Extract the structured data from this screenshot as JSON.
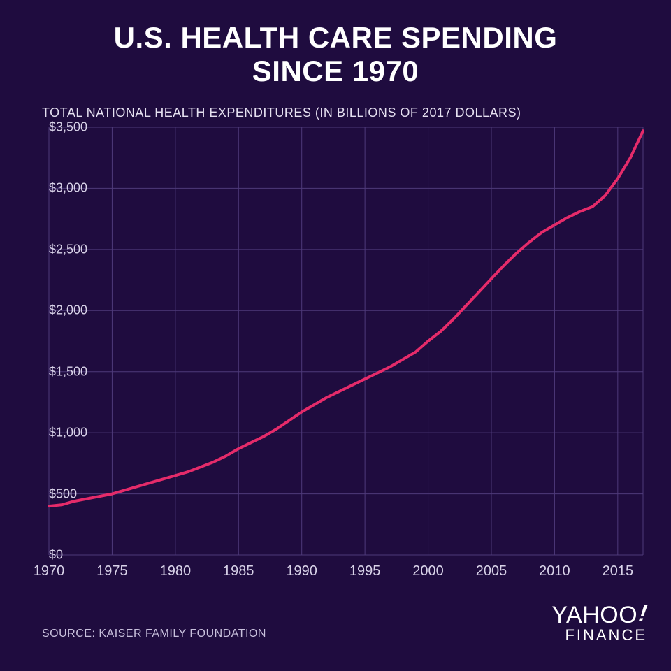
{
  "title_line1": "U.S. HEALTH CARE SPENDING",
  "title_line2": "SINCE 1970",
  "title_fontsize": 42,
  "subtitle": "TOTAL NATIONAL HEALTH EXPENDITURES (IN BILLIONS OF 2017 DOLLARS)",
  "subtitle_fontsize": 18,
  "source_label": "SOURCE:  KAISER FAMILY FOUNDATION",
  "logo": {
    "brand": "YAHOO",
    "bang": "!",
    "sub": "FINANCE"
  },
  "chart": {
    "type": "line",
    "background_color": "#1f0c3f",
    "grid_color": "#4e3a7a",
    "axis_color": "#d8d2e8",
    "line_color": "#e52b6a",
    "line_width": 4,
    "tick_fontsize": 18,
    "xlim": [
      1970,
      2017
    ],
    "ylim": [
      0,
      3500
    ],
    "xtick_step": 5,
    "xticks": [
      1970,
      1975,
      1980,
      1985,
      1990,
      1995,
      2000,
      2005,
      2010,
      2015
    ],
    "yticks": [
      0,
      500,
      1000,
      1500,
      2000,
      2500,
      3000,
      3500
    ],
    "ytick_labels": [
      "$0",
      "$500",
      "$1,000",
      "$1,500",
      "$2,000",
      "$2,500",
      "$3,000",
      "$3,500"
    ],
    "years": [
      1970,
      1971,
      1972,
      1973,
      1974,
      1975,
      1976,
      1977,
      1978,
      1979,
      1980,
      1981,
      1982,
      1983,
      1984,
      1985,
      1986,
      1987,
      1988,
      1989,
      1990,
      1991,
      1992,
      1993,
      1994,
      1995,
      1996,
      1997,
      1998,
      1999,
      2000,
      2001,
      2002,
      2003,
      2004,
      2005,
      2006,
      2007,
      2008,
      2009,
      2010,
      2011,
      2012,
      2013,
      2014,
      2015,
      2016,
      2017
    ],
    "values": [
      400,
      410,
      440,
      460,
      480,
      500,
      530,
      560,
      590,
      620,
      650,
      680,
      720,
      760,
      810,
      870,
      920,
      970,
      1030,
      1100,
      1170,
      1230,
      1290,
      1340,
      1390,
      1440,
      1490,
      1540,
      1600,
      1660,
      1750,
      1830,
      1930,
      2040,
      2150,
      2260,
      2370,
      2470,
      2560,
      2640,
      2700,
      2760,
      2810,
      2850,
      2940,
      3080,
      3250,
      3470
    ]
  }
}
